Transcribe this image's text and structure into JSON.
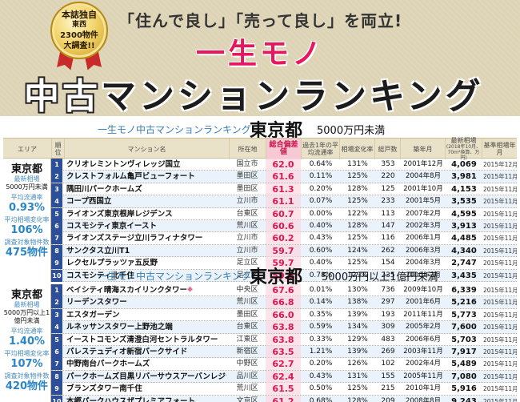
{
  "header": {
    "badge": [
      "本誌独自",
      "東西",
      "2300物件",
      "大調査!!"
    ],
    "tagline": "「住んで良し」「売って良し」を両立!",
    "title_line1": "一生モノ",
    "title_line2_a": "中古",
    "title_line2_b": "マンションランキング",
    "colors": {
      "background": "#ddd4b6",
      "title_pink": "#e8175d",
      "rank_blue": "#2d4f9a",
      "score_pink": "#e0164f"
    }
  },
  "columns": {
    "area": "エリア",
    "rank": "順位",
    "name": "マンション名",
    "location": "所在地",
    "score": "総合偏差値",
    "rate": "過去1年の平均流通率",
    "change": "相場変化率",
    "units": "総戸数",
    "built": "築年月",
    "price": "最新相場",
    "price_note": "(2018年10月、70m²換算、万円)",
    "base": "基準相場年月"
  },
  "sections": [
    {
      "ranking_name": "一生モノ中古マンションランキング",
      "prefecture": "東京都",
      "price_band": "5000万円未満",
      "left": {
        "pref": "東京都",
        "label_latest": "最新相場",
        "band": "5000万円未満",
        "label_rate": "平均流通率",
        "avg_rate": "0.93%",
        "label_change": "平均相場変化率",
        "avg_change": "106%",
        "label_count": "調査対象物件数",
        "count": "475物件"
      },
      "rows": [
        {
          "rank": "1",
          "name": "クリオレミントンヴィレッジ国立",
          "location": "国立市",
          "score": "62.0",
          "rate": "0.64%",
          "change": "131%",
          "units": "353",
          "built": "2001年12月",
          "price": "4,069",
          "base": "2015年12月"
        },
        {
          "rank": "2",
          "name": "クレストフォルム亀戸ビューフォート",
          "location": "墨田区",
          "score": "61.6",
          "rate": "0.11%",
          "change": "125%",
          "units": "220",
          "built": "2004年8月",
          "price": "3,981",
          "base": "2015年11月"
        },
        {
          "rank": "3",
          "name": "隅田川パークホームズ",
          "location": "墨田区",
          "score": "61.3",
          "rate": "0.20%",
          "change": "128%",
          "units": "125",
          "built": "2001年10月",
          "price": "4,153",
          "base": "2015年11月"
        },
        {
          "rank": "4",
          "name": "コープ西国立",
          "location": "立川市",
          "score": "61.1",
          "rate": "0.07%",
          "change": "125%",
          "units": "233",
          "built": "2001年5月",
          "price": "3,535",
          "base": "2015年11月"
        },
        {
          "rank": "5",
          "name": "ライオンズ東京根岸レジデンス",
          "location": "台東区",
          "score": "60.7",
          "rate": "0.00%",
          "change": "122%",
          "units": "113",
          "built": "2007年2月",
          "price": "4,595",
          "base": "2015年11月"
        },
        {
          "rank": "6",
          "name": "コスモシティ東京イースト",
          "location": "荒川区",
          "score": "60.6",
          "rate": "0.40%",
          "change": "128%",
          "units": "147",
          "built": "2002年3月",
          "price": "3,913",
          "base": "2015年11月"
        },
        {
          "rank": "7",
          "name": "ライオンズステージ立川ラフィナタワー",
          "location": "立川市",
          "score": "60.2",
          "rate": "0.43%",
          "change": "125%",
          "units": "116",
          "built": "2006年1月",
          "price": "4,485",
          "base": "2015年11月"
        },
        {
          "rank": "8",
          "name": "サンクタス立川T1",
          "location": "立川市",
          "score": "59.7",
          "rate": "0.60%",
          "change": "124%",
          "units": "262",
          "built": "2006年3月",
          "price": "4,340",
          "base": "2015年11月"
        },
        {
          "rank": "9",
          "name": "レクセルプラッツァ五反野",
          "location": "足立区",
          "score": "59.7",
          "rate": "0.40%",
          "change": "125%",
          "units": "154",
          "built": "2004年3月",
          "price": "2,747",
          "base": "2015年11月"
        },
        {
          "rank": "10",
          "name": "コスモシティ北千住",
          "location": "足立区",
          "score": "59.5",
          "rate": "0.78%",
          "change": "129%",
          "units": "235",
          "built": "2000年2月",
          "price": "3,435",
          "base": "2015年11月"
        }
      ]
    },
    {
      "ranking_name": "一生モノ中古マンションランキング",
      "prefecture": "東京都",
      "price_band": "5000万円以上1億円未満",
      "left": {
        "pref": "東京都",
        "label_latest": "最新相場",
        "band": "5000万円以上1億円未満",
        "label_rate": "平均流通率",
        "avg_rate": "1.40%",
        "label_change": "平均相場変化率",
        "avg_change": "107%",
        "label_count": "調査対象物件数",
        "count": "420物件"
      },
      "rows": [
        {
          "rank": "1",
          "name": "ベイシティ晴海スカイリンクタワー",
          "star": "※",
          "location": "中央区",
          "score": "67.6",
          "rate": "0.01%",
          "change": "130%",
          "units": "736",
          "built": "2009年10月",
          "price": "6,339",
          "base": "2015年11月"
        },
        {
          "rank": "2",
          "name": "リーデンスタワー",
          "location": "荒川区",
          "score": "66.8",
          "rate": "0.14%",
          "change": "138%",
          "units": "297",
          "built": "2001年6月",
          "price": "5,216",
          "base": "2015年11月"
        },
        {
          "rank": "3",
          "name": "エスタガーデン",
          "location": "墨田区",
          "score": "66.0",
          "rate": "0.35%",
          "change": "139%",
          "units": "193",
          "built": "2011年11月",
          "price": "5,773",
          "base": "2015年11月"
        },
        {
          "rank": "4",
          "name": "ルネッサンスタワー上野池之端",
          "location": "台東区",
          "score": "63.8",
          "rate": "0.59%",
          "change": "134%",
          "units": "309",
          "built": "2005年2月",
          "price": "7,600",
          "base": "2015年11月"
        },
        {
          "rank": "5",
          "name": "イーストコモンズ清澄白河セントラルタワー",
          "location": "江東区",
          "score": "63.8",
          "rate": "0.33%",
          "change": "129%",
          "units": "483",
          "built": "2006年6月",
          "price": "5,703",
          "base": "2015年11月"
        },
        {
          "rank": "6",
          "name": "パレステュディオ新宿パークサイド",
          "location": "新宿区",
          "score": "63.5",
          "rate": "1.21%",
          "change": "139%",
          "units": "269",
          "built": "2003年11月",
          "price": "7,917",
          "base": "2015年11月"
        },
        {
          "rank": "7",
          "name": "中野南台パークホームズ",
          "location": "中野区",
          "score": "62.7",
          "rate": "0.20%",
          "change": "126%",
          "units": "102",
          "built": "2002年4月",
          "price": "5,489",
          "base": "2015年11月"
        },
        {
          "rank": "8",
          "name": "パークホームズ目黒リバーサウスアーバンレジデンス",
          "location": "品川区",
          "score": "62.4",
          "rate": "0.43%",
          "change": "131%",
          "units": "155",
          "built": "2005年11月",
          "price": "7,080",
          "base": "2015年11月"
        },
        {
          "rank": "9",
          "name": "ブランズタワー南千住",
          "location": "荒川区",
          "score": "61.5",
          "rate": "0.50%",
          "change": "125%",
          "units": "215",
          "built": "2010年1月",
          "price": "5,916",
          "base": "2015年11月"
        },
        {
          "rank": "10",
          "name": "本郷パークハウスザプレミアフォート",
          "location": "文京区",
          "score": "61.2",
          "rate": "0.68%",
          "change": "128%",
          "units": "209",
          "built": "2008年8月",
          "price": "9,243",
          "base": "2015年11月"
        }
      ]
    }
  ]
}
